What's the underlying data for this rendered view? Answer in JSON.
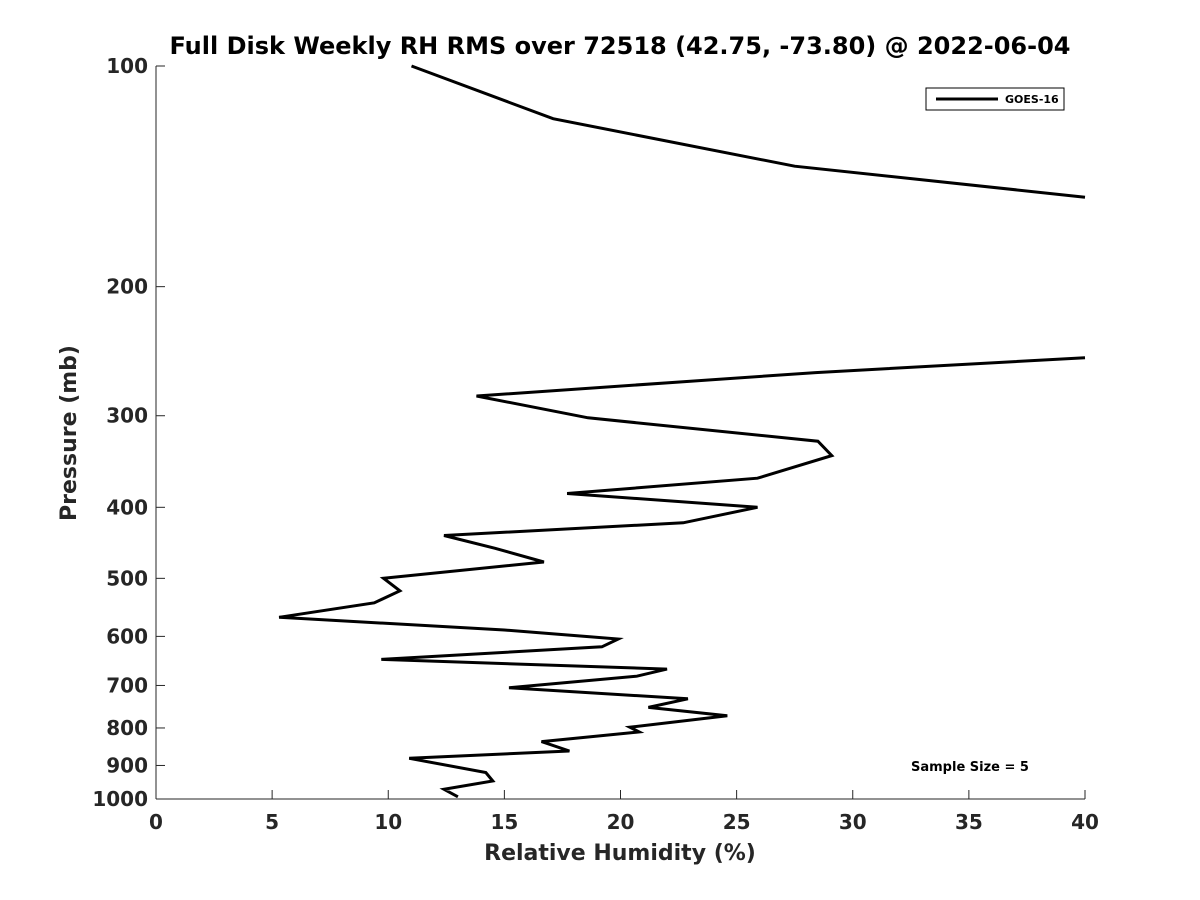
{
  "chart_data": {
    "type": "line",
    "title": "Full Disk Weekly RH RMS over 72518 (42.75, -73.80) @ 2022-06-04",
    "xlabel": "Relative Humidity (%)",
    "ylabel": "Pressure (mb)",
    "xlim": [
      0,
      40
    ],
    "ylim": [
      100,
      1000
    ],
    "yscale": "log",
    "y_reversed": true,
    "x_ticks": [
      0,
      5,
      10,
      15,
      20,
      25,
      30,
      35,
      40
    ],
    "y_ticks": [
      100,
      200,
      300,
      400,
      500,
      600,
      700,
      800,
      900,
      1000
    ],
    "legend": {
      "placement": "top-right",
      "entries": [
        "GOES-16"
      ]
    },
    "annotation": "Sample Size = 5",
    "series": [
      {
        "name": "GOES-16",
        "segments": [
          {
            "x": [
              11.0,
              17.1,
              27.5,
              40.0
            ],
            "y": [
              100,
              118,
              137,
              151
            ]
          },
          {
            "x": [
              40.0,
              28.4,
              13.8,
              18.6,
              28.5,
              29.1,
              25.9,
              17.7,
              25.9,
              22.7,
              12.4,
              14.6,
              16.7,
              9.8,
              10.5,
              9.4,
              5.3,
              15.0,
              19.9,
              19.2,
              9.7,
              22.0,
              20.7,
              15.2,
              22.9,
              21.2,
              24.6,
              20.4,
              20.8,
              16.6,
              17.8,
              10.9,
              14.2,
              14.5,
              12.4,
              13.0
            ],
            "y": [
              250,
              262,
              282,
              302,
              325,
              340,
              365,
              383,
              400,
              420,
              437,
              455,
              475,
              500,
              520,
              540,
              565,
              588,
              605,
              620,
              645,
              665,
              680,
              705,
              730,
              750,
              770,
              798,
              810,
              835,
              860,
              880,
              920,
              945,
              970,
              993
            ]
          }
        ]
      }
    ]
  }
}
